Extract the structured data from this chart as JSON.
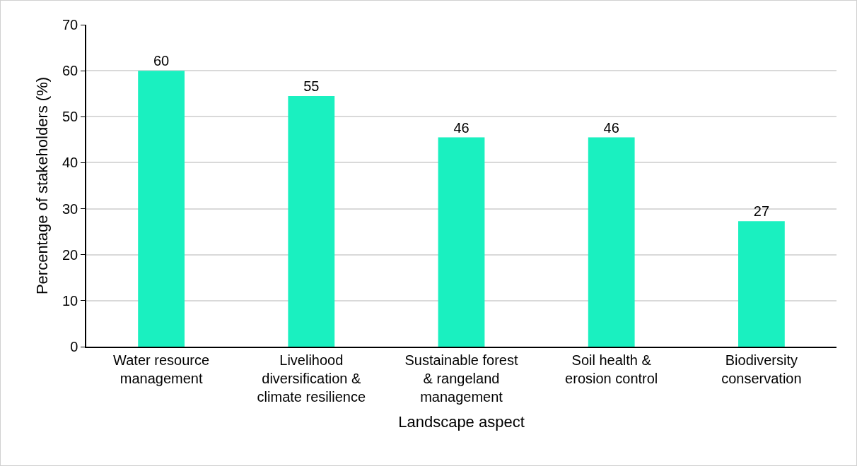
{
  "chart_data": {
    "type": "bar",
    "xlabel": "Landscape aspect",
    "ylabel": "Percentage of stakeholders (%)",
    "categories": [
      "Water resource management",
      "Livelihood diversification & climate resilience",
      "Sustainable forest & rangeland management",
      "Soil health & erosion control",
      "Biodiversity conservation"
    ],
    "values": [
      60,
      54.5,
      45.5,
      45.5,
      27.3
    ],
    "value_labels": [
      "60",
      "55",
      "46",
      "46",
      "27"
    ],
    "color": "#1af0c0",
    "ylim": [
      0,
      70
    ],
    "yticks": [
      0,
      10,
      20,
      30,
      40,
      50,
      60,
      70
    ],
    "grid": "y"
  }
}
